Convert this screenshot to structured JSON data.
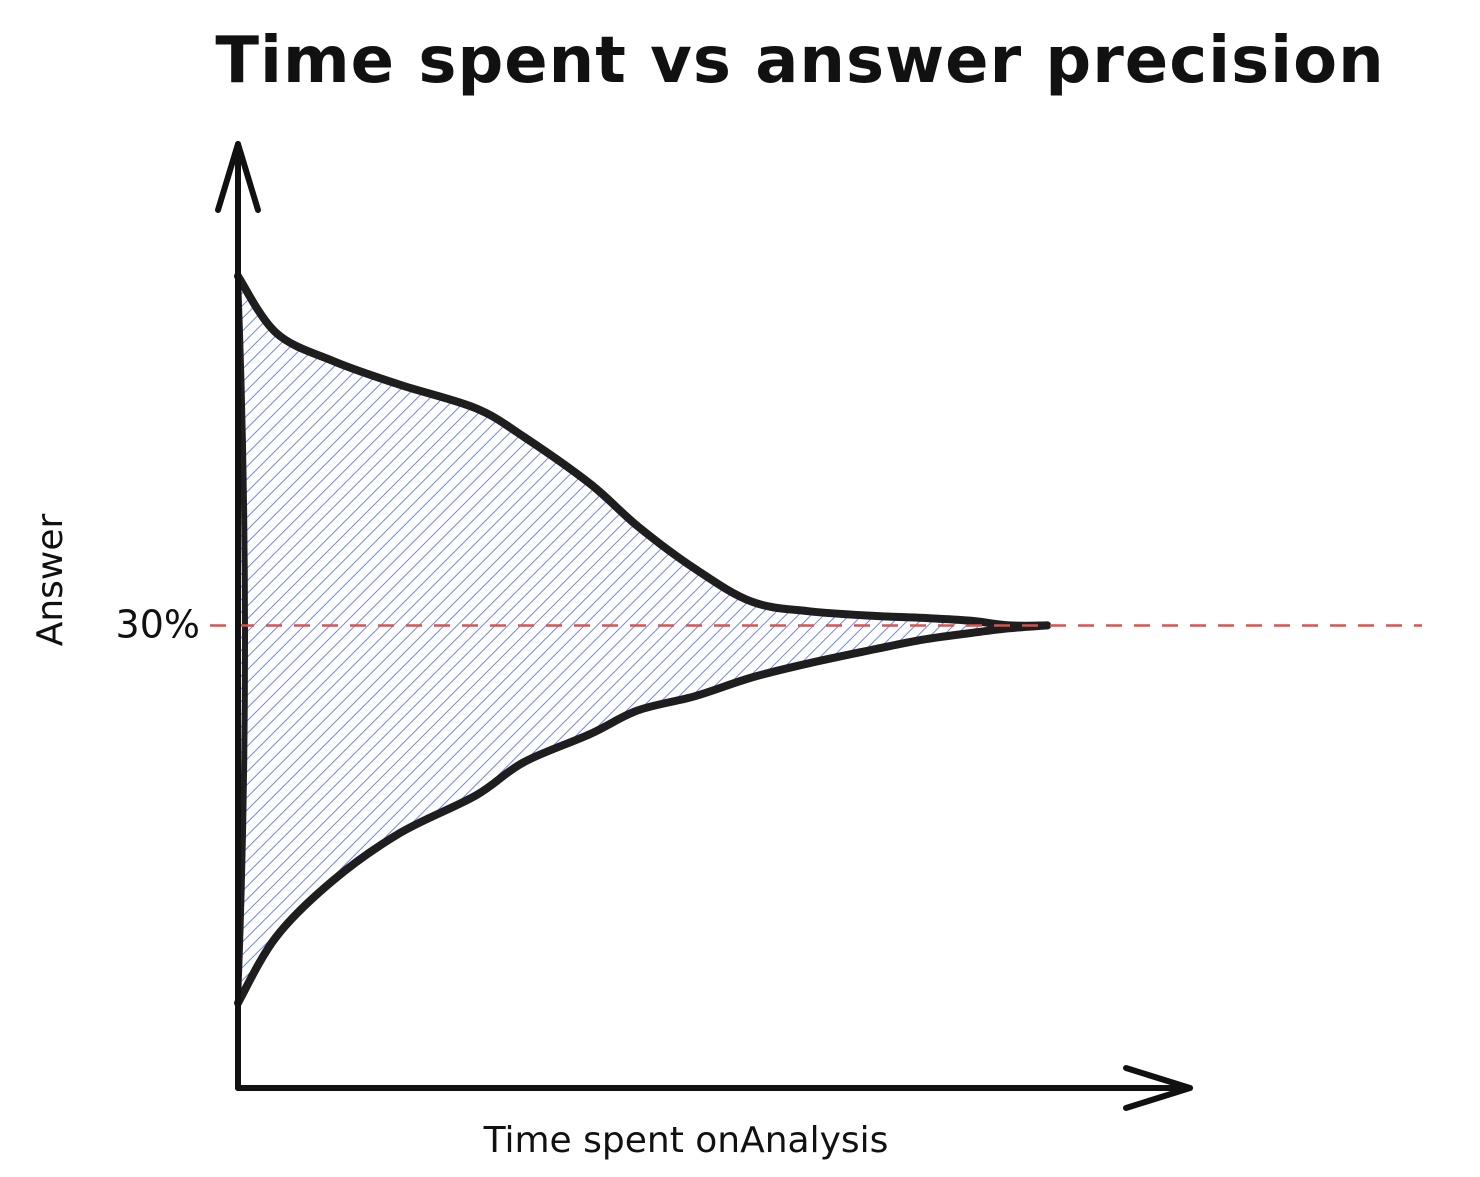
{
  "chart_data": {
    "type": "area",
    "title": "Time spent vs answer precision",
    "xlabel": "Time spent onAnalysis",
    "ylabel": "Answer",
    "x": [
      0,
      0.04,
      0.1,
      0.17,
      0.25,
      0.3,
      0.37,
      0.42,
      0.48,
      0.54,
      0.6,
      0.67,
      0.72,
      0.77,
      0.81,
      0.85
    ],
    "series": [
      {
        "values": [
          0.86,
          0.8,
          0.77,
          0.745,
          0.72,
          0.69,
          0.64,
          0.595,
          0.55,
          0.515,
          0.505,
          0.5,
          0.498,
          0.495,
          0.49,
          0.49
        ]
      },
      {
        "values": [
          0.09,
          0.16,
          0.22,
          0.27,
          0.31,
          0.345,
          0.375,
          0.4,
          0.415,
          0.435,
          0.45,
          0.465,
          0.475,
          0.482,
          0.487,
          0.49
        ]
      }
    ],
    "reference_line": {
      "y": 0.49,
      "label": "30%",
      "color": "#d9534f",
      "style": "dashed"
    },
    "fill_color": "#6f86f0",
    "xlim": [
      0,
      1
    ],
    "ylim": [
      0,
      1
    ],
    "grid": false,
    "axes_arrows": true
  }
}
